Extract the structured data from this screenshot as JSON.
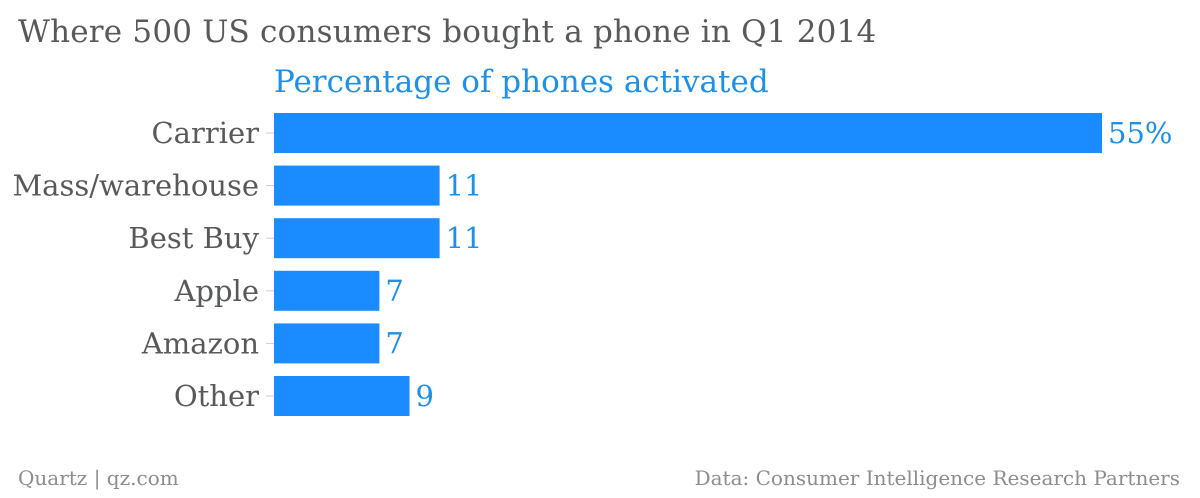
{
  "chart_data": {
    "type": "bar",
    "orientation": "horizontal",
    "title": "Where 500 US consumers bought a phone in Q1 2014",
    "subtitle": "Percentage of phones activated",
    "categories": [
      "Carrier",
      "Mass/warehouse",
      "Best Buy",
      "Apple",
      "Amazon",
      "Other"
    ],
    "values": [
      55,
      11,
      11,
      7,
      7,
      9
    ],
    "value_labels": [
      "55%",
      "11",
      "11",
      "7",
      "7",
      "9"
    ],
    "xlim": [
      0,
      55
    ],
    "grid": false,
    "legend": "none",
    "bar_color": "#1a8cff"
  },
  "footer": {
    "source_left": "Quartz | qz.com",
    "source_right": "Data: Consumer Intelligence Research Partners"
  }
}
